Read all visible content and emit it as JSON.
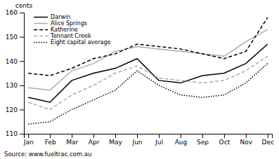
{
  "chart_data": {
    "type": "line",
    "ylabel": "cents",
    "annotation": "Source: www.fueltrac.com.au",
    "categories": [
      "Jan",
      "Feb",
      "Mar",
      "Apr",
      "May",
      "Jun",
      "Jul",
      "Aug",
      "Sep",
      "Oct",
      "Nov",
      "Dec"
    ],
    "series": [
      {
        "name": "Darwin",
        "color": "#000000",
        "line_style": "solid",
        "values": [
          125,
          123,
          132,
          135,
          137,
          141,
          132,
          131,
          134,
          135,
          139,
          147
        ]
      },
      {
        "name": "Alice Springs",
        "color": "#aaaaaa",
        "line_style": "solid",
        "values": [
          129,
          128,
          136,
          139,
          144,
          146,
          145,
          144,
          143,
          142,
          148,
          153
        ]
      },
      {
        "name": "Katherine",
        "color": "#000000",
        "line_style": "dashed",
        "values": [
          135,
          134,
          137,
          141,
          143,
          147,
          146,
          145,
          143,
          141,
          144,
          158
        ]
      },
      {
        "name": "Tennant Creek",
        "color": "#aaaaaa",
        "line_style": "dashed",
        "values": [
          123,
          120,
          126,
          130,
          135,
          138,
          133,
          132,
          131,
          132,
          136,
          142
        ]
      },
      {
        "name": "Eight capital average",
        "color": "#000000",
        "line_style": "dotted",
        "values": [
          114,
          115,
          120,
          124,
          128,
          136,
          130,
          126,
          125,
          126,
          131,
          139
        ]
      }
    ],
    "ylim": [
      110,
      160
    ],
    "yticks": [
      110,
      120,
      130,
      140,
      150,
      160
    ],
    "grid": false,
    "legend": "upper left"
  }
}
